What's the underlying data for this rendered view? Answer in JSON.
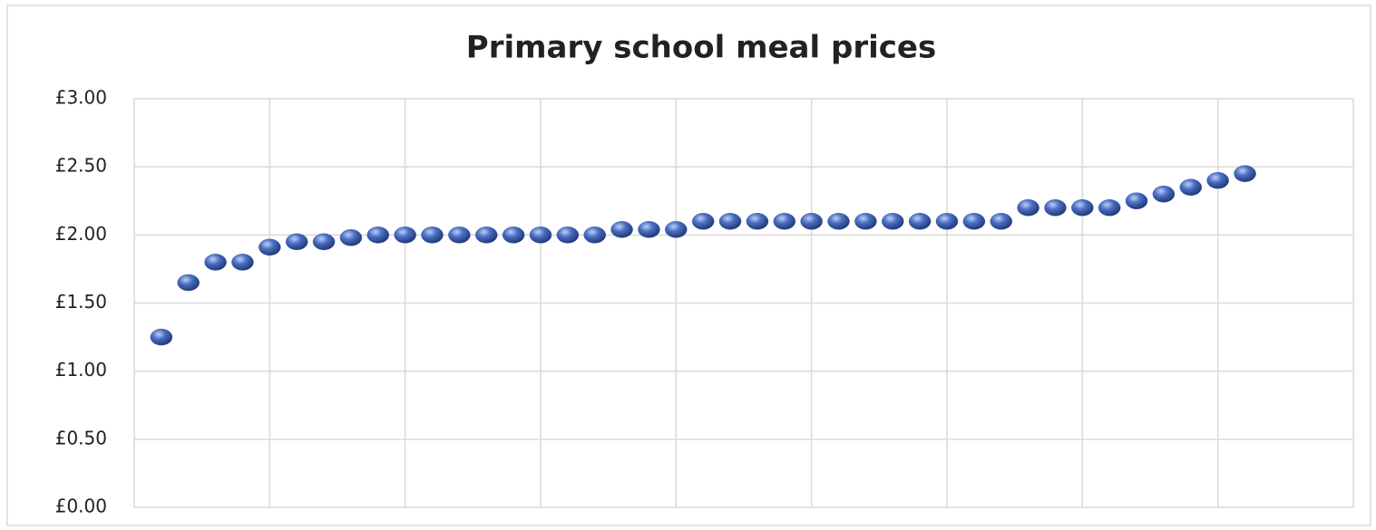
{
  "chart_data": {
    "type": "scatter",
    "title": "Primary school meal prices",
    "x": [
      1,
      2,
      3,
      4,
      5,
      6,
      7,
      8,
      9,
      10,
      11,
      12,
      13,
      14,
      15,
      16,
      17,
      18,
      19,
      20,
      21,
      22,
      23,
      24,
      25,
      26,
      27,
      28,
      29,
      30,
      31,
      32,
      33,
      34,
      35,
      36,
      37,
      38,
      39,
      40,
      41
    ],
    "values": [
      1.25,
      1.65,
      1.8,
      1.8,
      1.91,
      1.95,
      1.95,
      1.98,
      2.0,
      2.0,
      2.0,
      2.0,
      2.0,
      2.0,
      2.0,
      2.0,
      2.0,
      2.04,
      2.04,
      2.04,
      2.1,
      2.1,
      2.1,
      2.1,
      2.1,
      2.1,
      2.1,
      2.1,
      2.1,
      2.1,
      2.1,
      2.1,
      2.2,
      2.2,
      2.2,
      2.2,
      2.25,
      2.3,
      2.35,
      2.4,
      2.45
    ],
    "color": "#3a5fb0",
    "xlim": [
      0,
      45
    ],
    "xticks": [
      0,
      5,
      10,
      15,
      20,
      25,
      30,
      35,
      40,
      45
    ],
    "ylim": [
      0,
      3
    ],
    "yticks": [
      {
        "value": 0,
        "label": "£0.00"
      },
      {
        "value": 0.5,
        "label": "£0.50"
      },
      {
        "value": 1,
        "label": "£1.00"
      },
      {
        "value": 1.5,
        "label": "£1.50"
      },
      {
        "value": 2,
        "label": "£2.00"
      },
      {
        "value": 2.5,
        "label": "£2.50"
      },
      {
        "value": 3,
        "label": "£3.00"
      }
    ],
    "grid": true
  }
}
